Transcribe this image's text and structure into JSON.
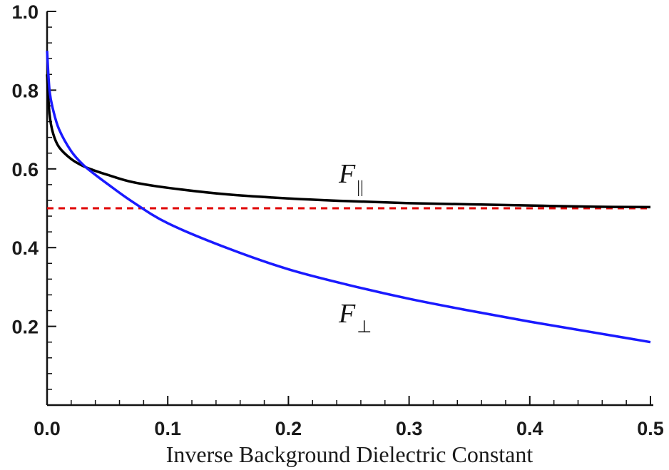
{
  "chart_data": {
    "type": "line",
    "title": "",
    "xlabel": "Inverse Background Dielectric Constant",
    "ylabel": "",
    "xlim": [
      0,
      0.5
    ],
    "ylim": [
      0,
      1.0
    ],
    "x_ticks": [
      "0.0",
      "0.1",
      "0.2",
      "0.3",
      "0.4",
      "0.5"
    ],
    "y_ticks": [
      "0.2",
      "0.4",
      "0.6",
      "0.8",
      "1.0"
    ],
    "grid": false,
    "legend": "none",
    "series": [
      {
        "color": "#000000",
        "label_main": "F",
        "label_sub": "||",
        "x": [
          0.0,
          0.002,
          0.005,
          0.01,
          0.02,
          0.03,
          0.04,
          0.05,
          0.07,
          0.1,
          0.15,
          0.2,
          0.25,
          0.3,
          0.35,
          0.4,
          0.45,
          0.5
        ],
        "y": [
          0.84,
          0.74,
          0.69,
          0.655,
          0.625,
          0.607,
          0.595,
          0.585,
          0.567,
          0.552,
          0.535,
          0.525,
          0.518,
          0.513,
          0.51,
          0.507,
          0.504,
          0.503
        ]
      },
      {
        "color": "#1a1aff",
        "label_main": "F",
        "label_sub": "⊥",
        "x": [
          0.0,
          0.002,
          0.005,
          0.01,
          0.02,
          0.03,
          0.04,
          0.05,
          0.07,
          0.1,
          0.15,
          0.2,
          0.25,
          0.3,
          0.35,
          0.4,
          0.45,
          0.5
        ],
        "y": [
          0.9,
          0.8,
          0.75,
          0.7,
          0.645,
          0.61,
          0.585,
          0.562,
          0.518,
          0.462,
          0.398,
          0.345,
          0.305,
          0.27,
          0.24,
          0.212,
          0.186,
          0.16
        ]
      }
    ],
    "reference_line": {
      "y": 0.5,
      "color": "#e00000",
      "style": "dashed"
    }
  }
}
